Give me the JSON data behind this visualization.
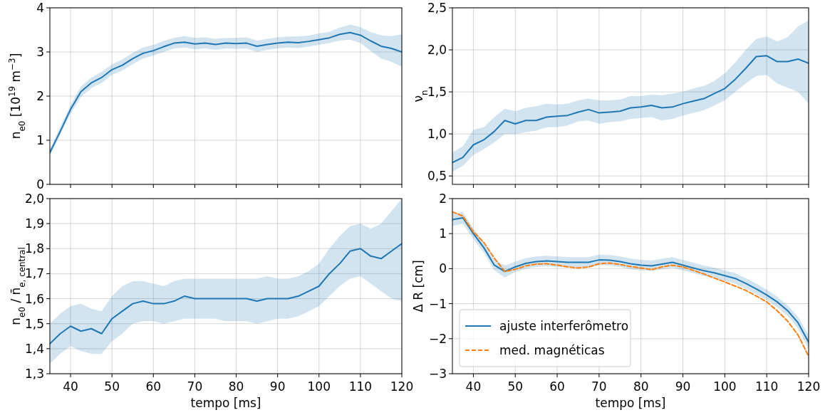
{
  "chart_data": [
    {
      "type": "line",
      "ylabel": "n$_{e0}$ [10$^{19}$ m$^{−3}$]",
      "x": [
        35,
        37.5,
        40,
        42.5,
        45,
        47.5,
        50,
        52.5,
        55,
        57.5,
        60,
        62.5,
        65,
        67.5,
        70,
        72.5,
        75,
        77.5,
        80,
        82.5,
        85,
        87.5,
        90,
        92.5,
        95,
        97.5,
        100,
        102.5,
        105,
        107.5,
        110,
        112.5,
        115,
        117.5,
        120
      ],
      "xlim": [
        35,
        120
      ],
      "xticks": [
        40,
        50,
        60,
        70,
        80,
        90,
        100,
        110,
        120
      ],
      "ylim": [
        0,
        4
      ],
      "yticks": [
        0,
        1,
        2,
        3,
        4
      ],
      "grid": true,
      "tick_labels": "y",
      "series": [
        {
          "color": "#1f77b4",
          "values": [
            0.72,
            1.2,
            1.7,
            2.1,
            2.3,
            2.42,
            2.6,
            2.7,
            2.85,
            2.97,
            3.03,
            3.12,
            3.2,
            3.22,
            3.18,
            3.2,
            3.17,
            3.2,
            3.19,
            3.2,
            3.13,
            3.17,
            3.2,
            3.22,
            3.21,
            3.24,
            3.28,
            3.32,
            3.4,
            3.44,
            3.38,
            3.25,
            3.13,
            3.08,
            3.0
          ],
          "lower": [
            0.65,
            1.12,
            1.6,
            1.98,
            2.18,
            2.3,
            2.48,
            2.58,
            2.72,
            2.85,
            2.92,
            3.0,
            3.08,
            3.1,
            3.06,
            3.08,
            3.05,
            3.08,
            3.07,
            3.08,
            3.0,
            3.05,
            3.08,
            3.1,
            3.09,
            3.12,
            3.16,
            3.2,
            3.26,
            3.28,
            3.2,
            3.02,
            2.85,
            2.78,
            2.66
          ],
          "upper": [
            0.8,
            1.3,
            1.8,
            2.22,
            2.42,
            2.55,
            2.72,
            2.83,
            2.98,
            3.1,
            3.16,
            3.25,
            3.32,
            3.36,
            3.32,
            3.33,
            3.3,
            3.32,
            3.32,
            3.33,
            3.26,
            3.3,
            3.33,
            3.35,
            3.35,
            3.37,
            3.42,
            3.46,
            3.55,
            3.62,
            3.56,
            3.45,
            3.38,
            3.36,
            3.4
          ]
        }
      ]
    },
    {
      "type": "line",
      "ylabel": "ν$_{n}$",
      "x": [
        35,
        37.5,
        40,
        42.5,
        45,
        47.5,
        50,
        52.5,
        55,
        57.5,
        60,
        62.5,
        65,
        67.5,
        70,
        72.5,
        75,
        77.5,
        80,
        82.5,
        85,
        87.5,
        90,
        92.5,
        95,
        97.5,
        100,
        102.5,
        105,
        107.5,
        110,
        112.5,
        115,
        117.5,
        120
      ],
      "xlim": [
        35,
        120
      ],
      "xticks": [
        40,
        50,
        60,
        70,
        80,
        90,
        100,
        110,
        120
      ],
      "ylim": [
        0.4,
        2.5
      ],
      "yticks": [
        {
          "value": 0.5,
          "label": "0,5"
        },
        {
          "value": 1,
          "label": "1,0"
        },
        {
          "value": 1.5,
          "label": "1,5"
        },
        {
          "value": 2,
          "label": "2,0"
        },
        {
          "value": 2.5,
          "label": "2,5"
        }
      ],
      "grid": true,
      "tick_labels": "y",
      "series": [
        {
          "color": "#1f77b4",
          "values": [
            0.66,
            0.72,
            0.87,
            0.93,
            1.03,
            1.16,
            1.12,
            1.16,
            1.16,
            1.2,
            1.21,
            1.22,
            1.26,
            1.29,
            1.25,
            1.26,
            1.27,
            1.31,
            1.32,
            1.34,
            1.31,
            1.32,
            1.36,
            1.39,
            1.42,
            1.48,
            1.54,
            1.65,
            1.78,
            1.92,
            1.93,
            1.86,
            1.86,
            1.89,
            1.84
          ],
          "lower": [
            0.55,
            0.62,
            0.75,
            0.82,
            0.9,
            1.0,
            1.0,
            1.02,
            1.04,
            1.08,
            1.08,
            1.1,
            1.15,
            1.16,
            1.12,
            1.14,
            1.15,
            1.18,
            1.19,
            1.2,
            1.16,
            1.18,
            1.22,
            1.25,
            1.28,
            1.34,
            1.4,
            1.5,
            1.6,
            1.69,
            1.7,
            1.6,
            1.55,
            1.5,
            1.36
          ],
          "upper": [
            0.78,
            0.85,
            1.05,
            1.08,
            1.2,
            1.3,
            1.27,
            1.31,
            1.33,
            1.36,
            1.35,
            1.36,
            1.4,
            1.42,
            1.4,
            1.4,
            1.41,
            1.45,
            1.45,
            1.47,
            1.46,
            1.48,
            1.5,
            1.54,
            1.57,
            1.63,
            1.72,
            1.85,
            2.0,
            2.13,
            2.16,
            2.1,
            2.15,
            2.28,
            2.35
          ]
        }
      ]
    },
    {
      "type": "line",
      "ylabel": "n$_{e0}$ / n̄$_{e, central}$",
      "xlabel": "tempo [ms]",
      "x": [
        35,
        37.5,
        40,
        42.5,
        45,
        47.5,
        50,
        52.5,
        55,
        57.5,
        60,
        62.5,
        65,
        67.5,
        70,
        72.5,
        75,
        77.5,
        80,
        82.5,
        85,
        87.5,
        90,
        92.5,
        95,
        97.5,
        100,
        102.5,
        105,
        107.5,
        110,
        112.5,
        115,
        117.5,
        120
      ],
      "xlim": [
        35,
        120
      ],
      "xticks": [
        40,
        50,
        60,
        70,
        80,
        90,
        100,
        110,
        120
      ],
      "ylim": [
        1.3,
        2.0
      ],
      "yticks": [
        {
          "value": 1.3,
          "label": "1,3"
        },
        {
          "value": 1.4,
          "label": "1,4"
        },
        {
          "value": 1.5,
          "label": "1,5"
        },
        {
          "value": 1.6,
          "label": "1,6"
        },
        {
          "value": 1.7,
          "label": "1,7"
        },
        {
          "value": 1.8,
          "label": "1,8"
        },
        {
          "value": 1.9,
          "label": "1,9"
        },
        {
          "value": 2.0,
          "label": "2,0"
        }
      ],
      "grid": true,
      "series": [
        {
          "color": "#1f77b4",
          "values": [
            1.42,
            1.46,
            1.49,
            1.47,
            1.48,
            1.46,
            1.52,
            1.55,
            1.58,
            1.59,
            1.58,
            1.58,
            1.59,
            1.61,
            1.6,
            1.6,
            1.6,
            1.6,
            1.6,
            1.6,
            1.59,
            1.6,
            1.6,
            1.6,
            1.61,
            1.63,
            1.65,
            1.7,
            1.74,
            1.79,
            1.8,
            1.77,
            1.76,
            1.79,
            1.82
          ],
          "lower": [
            1.34,
            1.38,
            1.41,
            1.39,
            1.38,
            1.38,
            1.43,
            1.46,
            1.5,
            1.51,
            1.51,
            1.5,
            1.51,
            1.52,
            1.52,
            1.52,
            1.52,
            1.51,
            1.51,
            1.51,
            1.5,
            1.51,
            1.52,
            1.52,
            1.53,
            1.55,
            1.57,
            1.61,
            1.65,
            1.68,
            1.69,
            1.66,
            1.63,
            1.6,
            1.59
          ],
          "upper": [
            1.5,
            1.54,
            1.57,
            1.58,
            1.56,
            1.55,
            1.61,
            1.65,
            1.67,
            1.67,
            1.66,
            1.65,
            1.67,
            1.68,
            1.68,
            1.68,
            1.68,
            1.68,
            1.68,
            1.68,
            1.68,
            1.69,
            1.68,
            1.68,
            1.69,
            1.71,
            1.74,
            1.8,
            1.85,
            1.89,
            1.9,
            1.88,
            1.9,
            1.95,
            2.0
          ]
        }
      ]
    },
    {
      "type": "line",
      "ylabel": "Δ R [cm]",
      "xlabel": "tempo [ms]",
      "x": [
        35,
        37.5,
        40,
        42.5,
        45,
        47.5,
        50,
        52.5,
        55,
        57.5,
        60,
        62.5,
        65,
        67.5,
        70,
        72.5,
        75,
        77.5,
        80,
        82.5,
        85,
        87.5,
        90,
        92.5,
        95,
        97.5,
        100,
        102.5,
        105,
        107.5,
        110,
        112.5,
        115,
        117.5,
        120
      ],
      "xlim": [
        35,
        120
      ],
      "xticks": [
        40,
        50,
        60,
        70,
        80,
        90,
        100,
        110,
        120
      ],
      "ylim": [
        -3,
        2
      ],
      "yticks": [
        {
          "value": -3,
          "label": "−3"
        },
        {
          "value": -2,
          "label": "−2"
        },
        {
          "value": -1,
          "label": "−1"
        },
        0,
        1,
        2
      ],
      "grid": true,
      "legend": "bottom left",
      "series": [
        {
          "name": "ajuste interferômetro",
          "color": "#1f77b4",
          "line_style": "solid",
          "values": [
            1.4,
            1.45,
            1.0,
            0.6,
            0.1,
            -0.08,
            0.05,
            0.15,
            0.2,
            0.22,
            0.2,
            0.18,
            0.18,
            0.18,
            0.25,
            0.24,
            0.2,
            0.14,
            0.1,
            0.08,
            0.13,
            0.18,
            0.1,
            0.02,
            -0.06,
            -0.12,
            -0.2,
            -0.28,
            -0.42,
            -0.58,
            -0.75,
            -0.95,
            -1.2,
            -1.55,
            -2.1
          ],
          "lower": [
            1.22,
            1.28,
            0.85,
            0.45,
            -0.05,
            -0.25,
            -0.1,
            0.0,
            0.05,
            0.07,
            0.05,
            0.03,
            0.03,
            0.03,
            0.1,
            0.09,
            0.05,
            -0.01,
            -0.05,
            -0.07,
            -0.02,
            0.03,
            -0.05,
            -0.13,
            -0.21,
            -0.27,
            -0.35,
            -0.43,
            -0.57,
            -0.73,
            -0.9,
            -1.1,
            -1.35,
            -1.72,
            -2.3
          ],
          "upper": [
            1.58,
            1.62,
            1.15,
            0.75,
            0.25,
            0.09,
            0.2,
            0.3,
            0.35,
            0.37,
            0.35,
            0.33,
            0.33,
            0.33,
            0.4,
            0.39,
            0.35,
            0.29,
            0.25,
            0.23,
            0.28,
            0.33,
            0.25,
            0.17,
            0.09,
            0.03,
            -0.05,
            -0.13,
            -0.27,
            -0.43,
            -0.6,
            -0.8,
            -1.05,
            -1.38,
            -1.9
          ]
        },
        {
          "name": "med. magnéticas",
          "color": "#ff7f0e",
          "line_style": "dashed",
          "values": [
            1.62,
            1.5,
            1.05,
            0.75,
            0.3,
            -0.08,
            -0.02,
            0.08,
            0.13,
            0.14,
            0.1,
            0.05,
            0.02,
            0.05,
            0.14,
            0.16,
            0.12,
            0.06,
            0.02,
            -0.03,
            0.05,
            0.1,
            0.05,
            -0.05,
            -0.15,
            -0.27,
            -0.38,
            -0.5,
            -0.62,
            -0.78,
            -0.95,
            -1.2,
            -1.5,
            -1.9,
            -2.5
          ]
        }
      ]
    }
  ]
}
